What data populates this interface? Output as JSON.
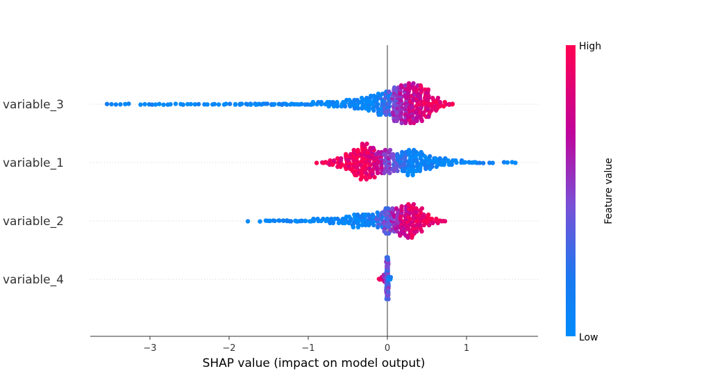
{
  "chart_data": {
    "type": "scatter",
    "subtype": "beeswarm",
    "title": "",
    "xlabel": "SHAP value (impact on model output)",
    "xlim": [
      -3.75,
      1.9
    ],
    "xticks": [
      -3,
      -2,
      -1,
      0,
      1
    ],
    "xtick_labels": [
      "−3",
      "−2",
      "−1",
      "0",
      "1"
    ],
    "colorbar": {
      "label": "Feature value",
      "high_label": "High",
      "low_label": "Low",
      "low_color": "#008bfb",
      "high_color": "#ff0052"
    },
    "features": [
      {
        "name": "variable_3",
        "bins": [
          [
            -3.5,
            2
          ],
          [
            -3.4,
            2
          ],
          [
            -3.3,
            2
          ],
          [
            -3.1,
            2
          ],
          [
            -3.0,
            2
          ],
          [
            -2.9,
            2
          ],
          [
            -2.8,
            2
          ],
          [
            -2.7,
            2
          ],
          [
            -2.6,
            2
          ],
          [
            -2.5,
            2
          ],
          [
            -2.4,
            2
          ],
          [
            -2.3,
            2
          ],
          [
            -2.2,
            2
          ],
          [
            -2.1,
            2
          ],
          [
            -2.0,
            2
          ],
          [
            -1.9,
            3
          ],
          [
            -1.8,
            3
          ],
          [
            -1.7,
            3
          ],
          [
            -1.6,
            3
          ],
          [
            -1.5,
            3
          ],
          [
            -1.4,
            3
          ],
          [
            -1.3,
            3
          ],
          [
            -1.2,
            3
          ],
          [
            -1.1,
            3
          ],
          [
            -1.0,
            3
          ],
          [
            -0.9,
            4
          ],
          [
            -0.8,
            4
          ],
          [
            -0.7,
            5
          ],
          [
            -0.6,
            6
          ],
          [
            -0.5,
            7
          ],
          [
            -0.4,
            9
          ],
          [
            -0.3,
            12
          ],
          [
            -0.2,
            16
          ],
          [
            -0.1,
            22
          ],
          [
            0.0,
            24
          ],
          [
            0.1,
            34
          ],
          [
            0.2,
            38
          ],
          [
            0.3,
            40
          ],
          [
            0.4,
            36
          ],
          [
            0.5,
            28
          ],
          [
            0.6,
            14
          ],
          [
            0.7,
            6
          ],
          [
            0.8,
            3
          ]
        ],
        "feature_value": [
          [
            -0.2,
            0.02
          ],
          [
            -0.1,
            0.15
          ],
          [
            0.0,
            0.3
          ],
          [
            0.1,
            0.5
          ],
          [
            0.2,
            0.65
          ],
          [
            0.3,
            0.75
          ],
          [
            0.4,
            0.8
          ],
          [
            0.5,
            0.85
          ],
          [
            0.6,
            0.95
          ]
        ]
      },
      {
        "name": "variable_1",
        "bins": [
          [
            -0.9,
            1
          ],
          [
            -0.8,
            3
          ],
          [
            -0.7,
            5
          ],
          [
            -0.6,
            10
          ],
          [
            -0.5,
            16
          ],
          [
            -0.4,
            26
          ],
          [
            -0.3,
            36
          ],
          [
            -0.2,
            30
          ],
          [
            -0.1,
            22
          ],
          [
            0.0,
            24
          ],
          [
            0.1,
            18
          ],
          [
            0.2,
            20
          ],
          [
            0.3,
            26
          ],
          [
            0.4,
            20
          ],
          [
            0.5,
            14
          ],
          [
            0.6,
            10
          ],
          [
            0.7,
            7
          ],
          [
            0.8,
            5
          ],
          [
            0.9,
            4
          ],
          [
            1.0,
            3
          ],
          [
            1.1,
            3
          ],
          [
            1.2,
            2
          ],
          [
            1.3,
            2
          ],
          [
            1.5,
            2
          ],
          [
            1.6,
            2
          ]
        ],
        "feature_value": [
          [
            -0.3,
            0.95
          ],
          [
            -0.2,
            0.85
          ],
          [
            -0.1,
            0.7
          ],
          [
            0.0,
            0.5
          ],
          [
            0.1,
            0.35
          ],
          [
            0.2,
            0.2
          ],
          [
            0.3,
            0.05
          ]
        ]
      },
      {
        "name": "variable_2",
        "bins": [
          [
            -1.75,
            1
          ],
          [
            -1.6,
            1
          ],
          [
            -1.5,
            3
          ],
          [
            -1.4,
            3
          ],
          [
            -1.3,
            3
          ],
          [
            -1.2,
            3
          ],
          [
            -1.1,
            3
          ],
          [
            -1.0,
            3
          ],
          [
            -0.9,
            4
          ],
          [
            -0.8,
            4
          ],
          [
            -0.7,
            5
          ],
          [
            -0.6,
            6
          ],
          [
            -0.5,
            8
          ],
          [
            -0.4,
            14
          ],
          [
            -0.3,
            12
          ],
          [
            -0.2,
            12
          ],
          [
            -0.1,
            16
          ],
          [
            0.0,
            26
          ],
          [
            0.1,
            24
          ],
          [
            0.2,
            30
          ],
          [
            0.3,
            34
          ],
          [
            0.4,
            24
          ],
          [
            0.5,
            12
          ],
          [
            0.6,
            6
          ],
          [
            0.7,
            3
          ]
        ],
        "feature_value": [
          [
            -0.3,
            0.03
          ],
          [
            -0.2,
            0.1
          ],
          [
            -0.1,
            0.25
          ],
          [
            0.0,
            0.4
          ],
          [
            0.1,
            0.6
          ],
          [
            0.2,
            0.75
          ],
          [
            0.3,
            0.85
          ],
          [
            0.4,
            0.9
          ],
          [
            0.5,
            0.95
          ]
        ]
      },
      {
        "name": "variable_4",
        "bins": [
          [
            -0.1,
            2
          ],
          [
            -0.06,
            4
          ],
          [
            -0.03,
            8
          ],
          [
            0.0,
            40
          ],
          [
            0.03,
            4
          ]
        ],
        "feature_value": [
          [
            -0.1,
            0.95
          ],
          [
            -0.06,
            0.9
          ],
          [
            -0.03,
            0.6
          ],
          [
            0.0,
            0.4
          ],
          [
            0.03,
            0.1
          ]
        ]
      }
    ]
  }
}
